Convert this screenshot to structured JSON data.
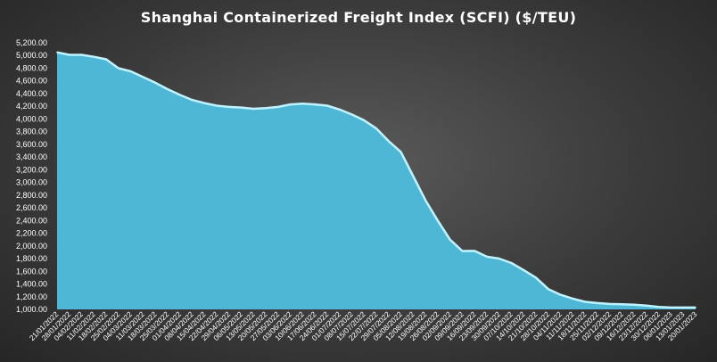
{
  "chart_data": {
    "type": "area",
    "title": "Shanghai Containerized Freight Index  (SCFI) ($/TEU)",
    "xlabel": "",
    "ylabel": "",
    "ylim": [
      1000,
      5200
    ],
    "ytick_step": 200,
    "grid": false,
    "legend": "none",
    "fill_color": "#4fb7d6",
    "line_color": "#bff3ff",
    "x_tick_labels": [
      "21/01/2022",
      "28/01/2022",
      "04/02/2022",
      "11/02/2022",
      "18/02/2022",
      "25/02/2022",
      "04/03/2022",
      "11/03/2022",
      "18/03/2022",
      "25/03/2022",
      "01/04/2022",
      "08/04/2022",
      "15/04/2022",
      "22/04/2022",
      "29/04/2022",
      "06/05/2022",
      "13/05/2022",
      "20/05/2022",
      "27/05/2022",
      "03/06/2022",
      "10/06/2022",
      "17/06/2022",
      "24/06/2022",
      "01/07/2022",
      "08/07/2022",
      "15/07/2022",
      "22/07/2022",
      "29/07/2022",
      "05/08/2022",
      "12/08/2022",
      "19/08/2022",
      "26/08/2022",
      "02/09/2022",
      "09/09/2022",
      "16/09/2022",
      "23/09/2022",
      "30/09/2022",
      "07/10/2022",
      "14/10/2022",
      "21/10/2022",
      "28/10/2022",
      "04/11/2022",
      "11/11/2022",
      "18/11/2022",
      "25/11/2022",
      "02/12/2022",
      "09/12/2022",
      "16/12/2022",
      "23/12/2022",
      "30/12/2022",
      "06/01/2023",
      "13/01/2023",
      "20/01/2023"
    ],
    "values": [
      5050,
      5010,
      5010,
      4980,
      4940,
      4800,
      4750,
      4660,
      4570,
      4470,
      4380,
      4300,
      4250,
      4210,
      4190,
      4180,
      4160,
      4170,
      4190,
      4230,
      4240,
      4230,
      4210,
      4150,
      4070,
      3980,
      3850,
      3650,
      3480,
      3100,
      2720,
      2400,
      2100,
      1920,
      1922,
      1830,
      1800,
      1730,
      1620,
      1500,
      1320,
      1230,
      1170,
      1120,
      1100,
      1085,
      1080,
      1075,
      1060,
      1040,
      1030,
      1030,
      1030
    ]
  }
}
